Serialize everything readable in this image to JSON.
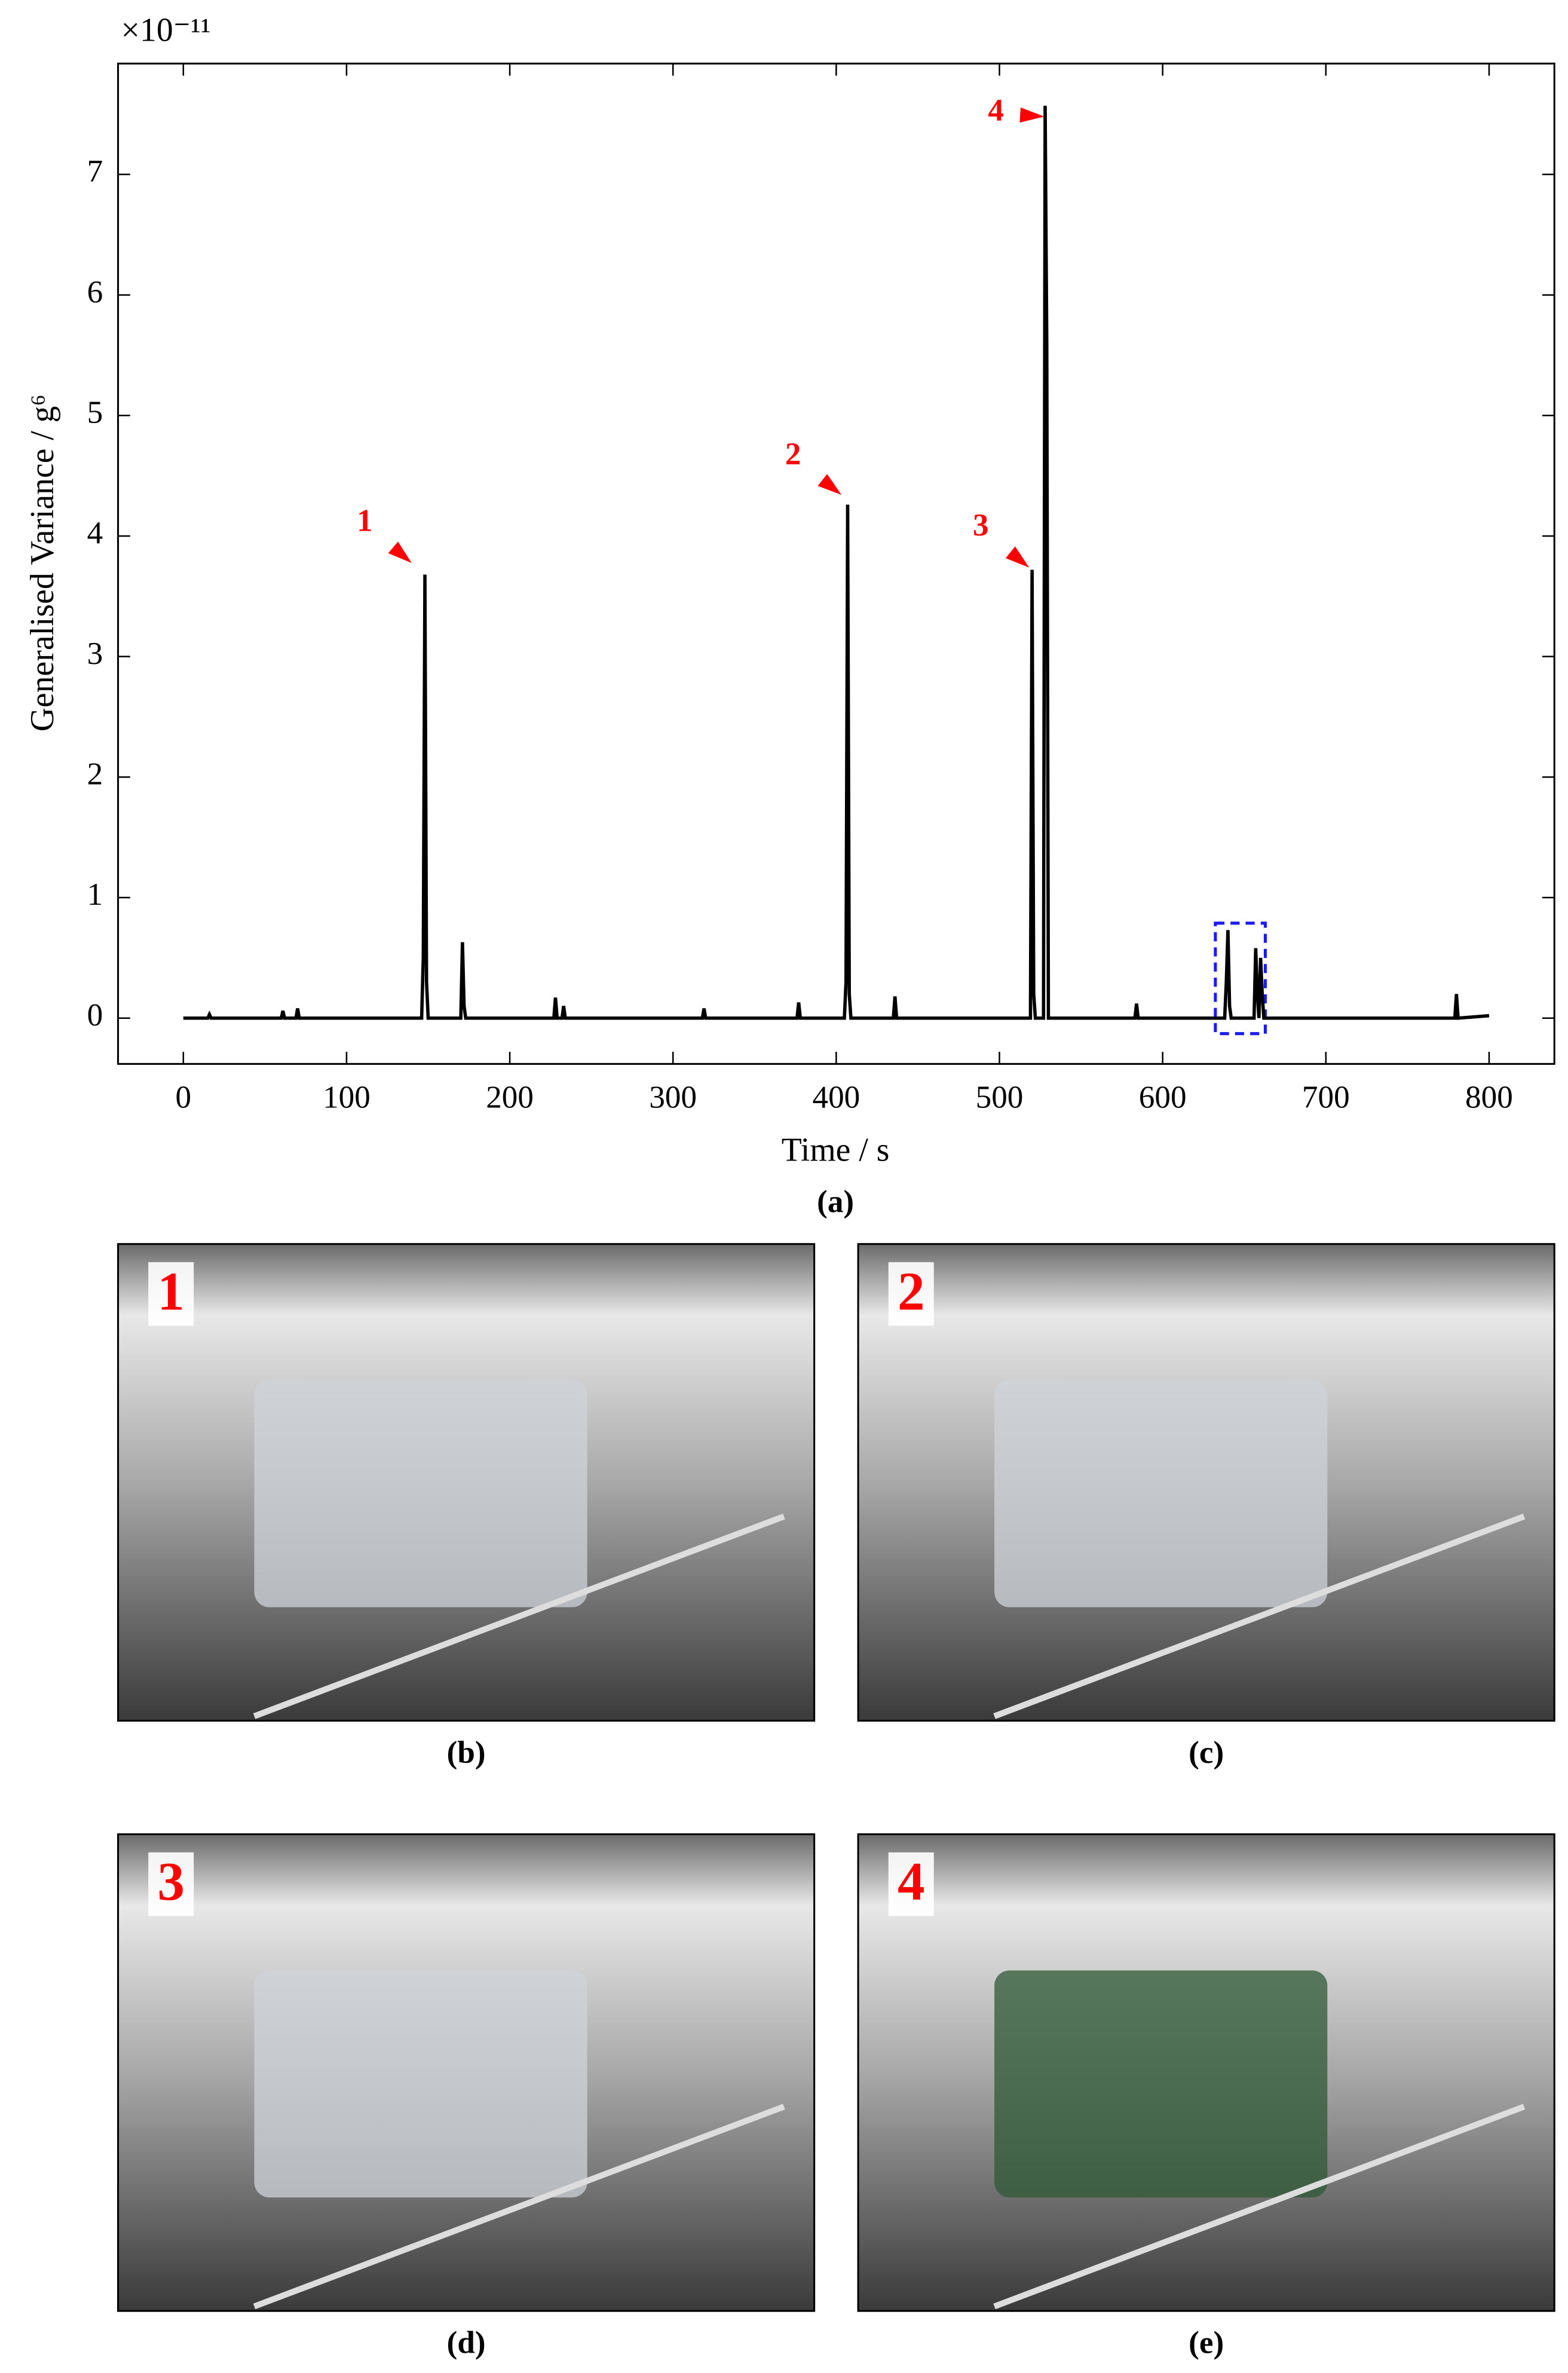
{
  "chart_data": {
    "type": "line",
    "x_label": "Time / s",
    "y_label": "Generalised Variance / g⁶",
    "y_exponent": "×10⁻¹¹",
    "caption": "(a)",
    "x": [
      0,
      15,
      16,
      17,
      60,
      61,
      62,
      69,
      70,
      71,
      146,
      147,
      148,
      149,
      150,
      170,
      171,
      172,
      173,
      227,
      228,
      229,
      232,
      233,
      234,
      318,
      319,
      320,
      376,
      377,
      378,
      405,
      406,
      407,
      408,
      409,
      435,
      436,
      437,
      519,
      520,
      521,
      522,
      527,
      528,
      529,
      530,
      583,
      584,
      585,
      638,
      639,
      640,
      641,
      642,
      656,
      657,
      658,
      659,
      660,
      661,
      662,
      779,
      780,
      781,
      800
    ],
    "series": [
      {
        "color": "#000000",
        "values": [
          0,
          0,
          0.03,
          0,
          0,
          0.06,
          0,
          0,
          0.08,
          0,
          0,
          0.5,
          3.68,
          0.3,
          0,
          0,
          0.63,
          0.1,
          0,
          0,
          0.17,
          0,
          0,
          0.1,
          0,
          0,
          0.08,
          0,
          0,
          0.13,
          0,
          0,
          0.3,
          4.26,
          0.2,
          0,
          0,
          0.18,
          0,
          0,
          3.72,
          0.2,
          0,
          0,
          7.57,
          5.6,
          0,
          0,
          0.12,
          0,
          0,
          0.3,
          0.73,
          0.1,
          0,
          0,
          0.58,
          0.2,
          0,
          0.5,
          0.2,
          0,
          0,
          0.2,
          0,
          0.02
        ]
      }
    ],
    "xlim": [
      -40,
      840
    ],
    "ylim": [
      -0.38,
      7.92
    ],
    "xticks": [
      0,
      100,
      200,
      300,
      400,
      500,
      600,
      700,
      800
    ],
    "yticks": [
      0,
      1,
      2,
      3,
      4,
      5,
      6,
      7
    ],
    "annotations": [
      "1",
      "2",
      "3",
      "4"
    ]
  },
  "panels": [
    {
      "label": "1",
      "caption": "(b)"
    },
    {
      "label": "2",
      "caption": "(c)"
    },
    {
      "label": "3",
      "caption": "(d)"
    },
    {
      "label": "4",
      "caption": "(e)"
    }
  ]
}
